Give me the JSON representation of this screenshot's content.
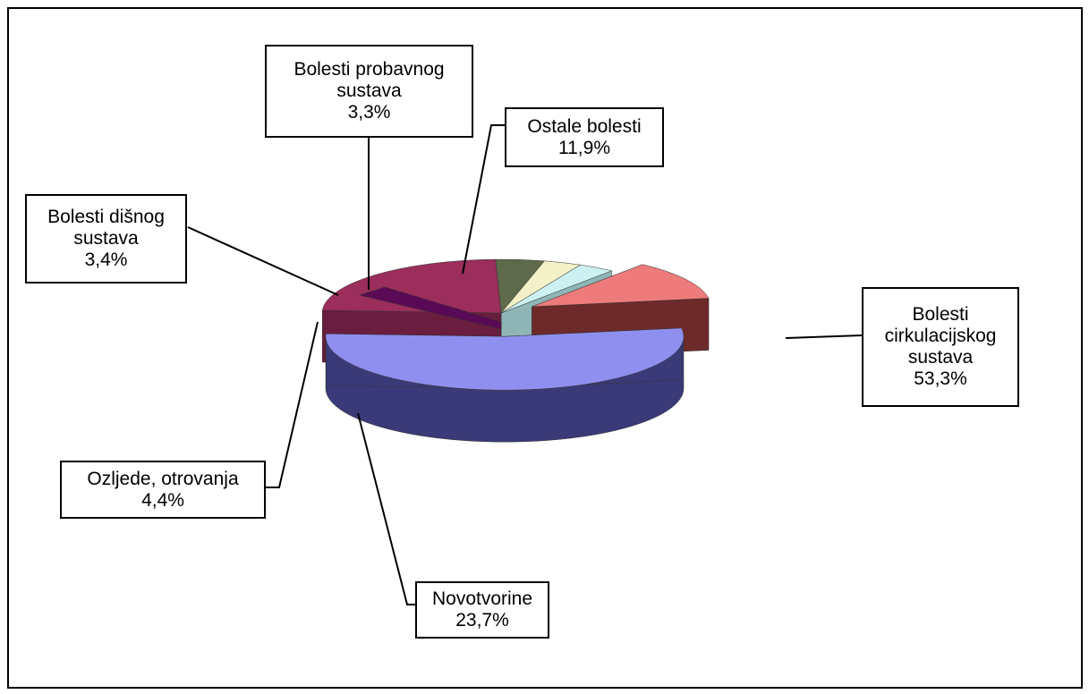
{
  "chart_data": {
    "type": "pie",
    "title": "",
    "legend": "none",
    "slices": [
      {
        "name": "Bolesti cirkulacijskog sustava",
        "label_lines": [
          "Bolesti",
          "cirkulacijskog",
          "sustava"
        ],
        "value": 53.3,
        "value_label": "53,3%",
        "color": "#8f8fef",
        "side_color": "#3a3a78"
      },
      {
        "name": "Novotvorine",
        "label_lines": [
          "Novotvorine"
        ],
        "value": 23.7,
        "value_label": "23,7%",
        "color": "#9b2e5a",
        "side_color": "#6a1d3e"
      },
      {
        "name": "Ozljede, otrovanja",
        "label_lines": [
          "Ozljede, otrovanja"
        ],
        "value": 4.4,
        "value_label": "4,4%",
        "color": "#5f6a4a",
        "side_color": "#3f4733"
      },
      {
        "name": "Bolesti dišnog sustava",
        "label_lines": [
          "Bolesti dišnog",
          "sustava"
        ],
        "value": 3.4,
        "value_label": "3,4%",
        "color": "#f3f1c8",
        "side_color": "#c9c69a"
      },
      {
        "name": "Bolesti probavnog sustava",
        "label_lines": [
          "Bolesti probavnog",
          "sustava"
        ],
        "value": 3.3,
        "value_label": "3,3%",
        "color": "#cdf1f2",
        "side_color": "#8fb5b7"
      },
      {
        "name": "Ostale bolesti",
        "label_lines": [
          "Ostale bolesti"
        ],
        "value": 11.9,
        "value_label": "11,9%",
        "color": "#ee7b7b",
        "side_color": "#6e2a2a"
      }
    ],
    "extra_slice": {
      "name": "",
      "value": 0,
      "color": "#5a0a55"
    }
  }
}
